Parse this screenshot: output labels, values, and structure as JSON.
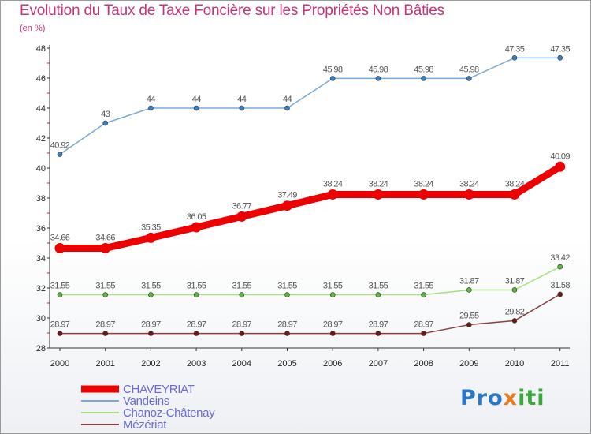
{
  "chart_data": {
    "type": "line",
    "title": "Evolution du Taux de Taxe Foncière sur les Propriétés Non Bâties",
    "ylabel": "(en %)",
    "categories": [
      "2000",
      "2001",
      "2002",
      "2003",
      "2004",
      "2005",
      "2006",
      "2007",
      "2008",
      "2009",
      "2010",
      "2011"
    ],
    "ylim": [
      28,
      48
    ],
    "yticks": [
      28,
      30,
      32,
      34,
      36,
      38,
      40,
      42,
      44,
      46,
      48
    ],
    "series": [
      {
        "name": "CHAVEYRIAT",
        "color": "#ee0000",
        "emphasis": true,
        "values": [
          34.66,
          34.66,
          35.35,
          36.05,
          36.77,
          37.49,
          38.24,
          38.24,
          38.24,
          38.24,
          38.24,
          40.09
        ],
        "labels": [
          "34.66",
          "34.66",
          "35.35",
          "36.05",
          "36.77",
          "37.49",
          "38.24",
          "38.24",
          "38.24",
          "38.24",
          "38.24",
          "40.09"
        ]
      },
      {
        "name": "Vandeins",
        "color": "#7aaad6",
        "marker": "#3a7fc0",
        "values": [
          40.92,
          43,
          44,
          44,
          44,
          44,
          45.98,
          45.98,
          45.98,
          45.98,
          47.35,
          47.35
        ],
        "labels": [
          "40.92",
          "43",
          "44",
          "44",
          "44",
          "44",
          "45.98",
          "45.98",
          "45.98",
          "45.98",
          "47.35",
          "47.35"
        ]
      },
      {
        "name": "Chanoz-Châtenay",
        "color": "#a8e080",
        "marker": "#5cb83a",
        "values": [
          31.55,
          31.55,
          31.55,
          31.55,
          31.55,
          31.55,
          31.55,
          31.55,
          31.55,
          31.87,
          31.87,
          33.42
        ],
        "labels": [
          "31.55",
          "31.55",
          "31.55",
          "31.55",
          "31.55",
          "31.55",
          "31.55",
          "31.55",
          "31.55",
          "31.87",
          "31.87",
          "33.42"
        ]
      },
      {
        "name": "Mézériat",
        "color": "#8a4040",
        "marker": "#6a1a1a",
        "values": [
          28.97,
          28.97,
          28.97,
          28.97,
          28.97,
          28.97,
          28.97,
          28.97,
          28.97,
          29.55,
          29.82,
          31.58
        ],
        "labels": [
          "28.97",
          "28.97",
          "28.97",
          "28.97",
          "28.97",
          "28.97",
          "28.97",
          "28.97",
          "28.97",
          "29.55",
          "29.82",
          "31.58"
        ]
      }
    ],
    "legend_position": "bottom-left",
    "grid": false
  },
  "logo": {
    "part1": "Pro",
    "part2": "x",
    "part3": "iti"
  }
}
